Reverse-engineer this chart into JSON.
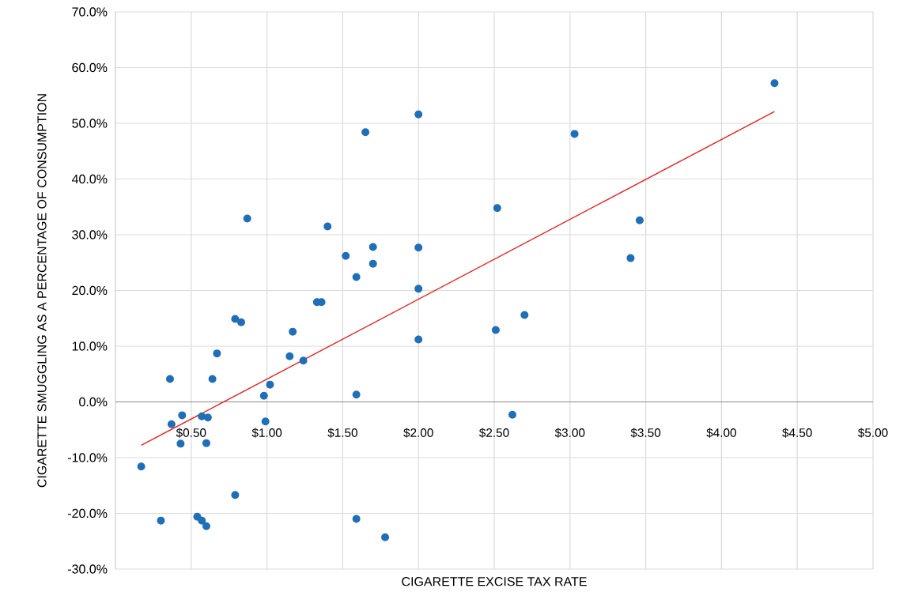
{
  "chart_data": {
    "type": "scatter",
    "xlabel": "CIGARETTE EXCISE TAX RATE",
    "ylabel": "CIGARETTE SMUGGLING AS A PERCENTAGE OF CONSUMPTION",
    "xlim": [
      0,
      5
    ],
    "ylim": [
      -30,
      70
    ],
    "xticks": [
      {
        "value": 0,
        "label": null
      },
      {
        "value": 0.5,
        "label": "$0.50"
      },
      {
        "value": 1,
        "label": "$1.00"
      },
      {
        "value": 1.5,
        "label": "$1.50"
      },
      {
        "value": 2,
        "label": "$2.00"
      },
      {
        "value": 2.5,
        "label": "$2.50"
      },
      {
        "value": 3,
        "label": "$3.00"
      },
      {
        "value": 3.5,
        "label": "$3.50"
      },
      {
        "value": 4,
        "label": "$4.00"
      },
      {
        "value": 4.5,
        "label": "$4.50"
      },
      {
        "value": 5,
        "label": "$5.00"
      }
    ],
    "yticks": [
      {
        "value": -30,
        "label": "-30.0%"
      },
      {
        "value": -20,
        "label": "-20.0%"
      },
      {
        "value": -10,
        "label": "-10.0%"
      },
      {
        "value": 0,
        "label": "0.0%"
      },
      {
        "value": 10,
        "label": "10.0%"
      },
      {
        "value": 20,
        "label": "20.0%"
      },
      {
        "value": 30,
        "label": "30.0%"
      },
      {
        "value": 40,
        "label": "40.0%"
      },
      {
        "value": 50,
        "label": "50.0%"
      },
      {
        "value": 60,
        "label": "60.0%"
      },
      {
        "value": 70,
        "label": "70.0%"
      }
    ],
    "grid": true,
    "marker": "circle",
    "series": [
      {
        "color": "#1f6fb8",
        "x": [
          0.17,
          0.3,
          0.36,
          0.37,
          0.43,
          0.44,
          0.54,
          0.57,
          0.57,
          0.6,
          0.6,
          0.61,
          0.64,
          0.67,
          0.79,
          0.79,
          0.83,
          0.87,
          0.98,
          0.99,
          1.02,
          1.15,
          1.17,
          1.24,
          1.33,
          1.36,
          1.4,
          1.52,
          1.59,
          1.59,
          1.59,
          1.65,
          1.7,
          1.7,
          1.78,
          2.0,
          2.0,
          2.0,
          2.0,
          2.51,
          2.52,
          2.62,
          2.7,
          3.03,
          3.4,
          3.46,
          4.35
        ],
        "values": [
          -11.6,
          -21.3,
          4.1,
          -4.0,
          -7.5,
          -2.4,
          -20.6,
          -2.6,
          -21.3,
          -7.4,
          -22.3,
          -2.8,
          4.1,
          8.7,
          14.9,
          -16.7,
          14.3,
          32.9,
          1.1,
          -3.5,
          3.1,
          8.2,
          12.6,
          7.4,
          17.9,
          17.9,
          31.5,
          26.2,
          22.4,
          1.3,
          -21.0,
          48.4,
          27.8,
          24.8,
          -24.3,
          51.6,
          27.7,
          20.3,
          11.2,
          12.9,
          34.8,
          -2.3,
          15.6,
          48.1,
          25.8,
          32.6,
          57.2
        ]
      },
      {
        "type": "line",
        "color": "#ee2222",
        "marker": "none",
        "x": [
          0.17,
          4.35
        ],
        "values": [
          -7.8,
          52.1
        ]
      }
    ]
  }
}
